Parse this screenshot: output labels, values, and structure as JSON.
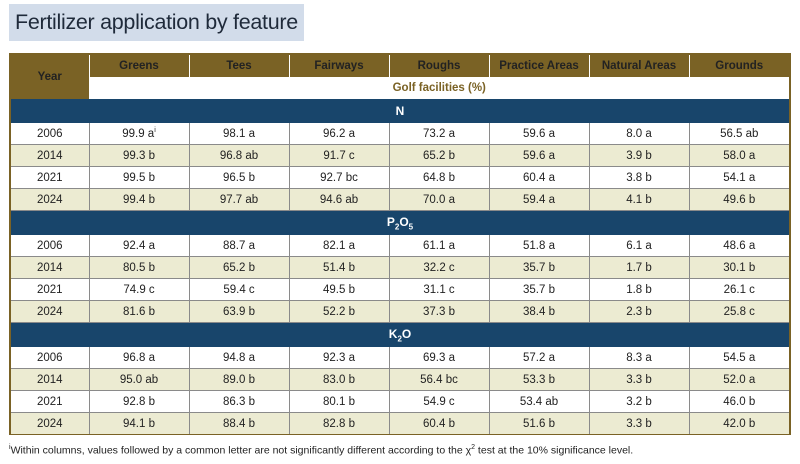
{
  "title": "Fertilizer application by feature",
  "header": {
    "year": "Year",
    "columns": [
      "Greens",
      "Tees",
      "Fairways",
      "Roughs",
      "Practice Areas",
      "Natural Areas",
      "Grounds"
    ],
    "unit": "Golf facilities (%)"
  },
  "sections": [
    {
      "label": "N",
      "sub": "",
      "label_tail": "",
      "sub2": "",
      "rows": [
        {
          "year": "2006",
          "cells": [
            "99.9 a",
            "98.1 a",
            "96.2 a",
            "73.2 a",
            "59.6 a",
            "8.0 a",
            "56.5 ab"
          ]
        },
        {
          "year": "2014",
          "cells": [
            "99.3 b",
            "96.8 ab",
            "91.7 c",
            "65.2 b",
            "59.6 a",
            "3.9 b",
            "58.0 a"
          ]
        },
        {
          "year": "2021",
          "cells": [
            "99.5 b",
            "96.5 b",
            "92.7 bc",
            "64.8 b",
            "60.4 a",
            "3.8 b",
            "54.1 a"
          ]
        },
        {
          "year": "2024",
          "cells": [
            "99.4 b",
            "97.7 ab",
            "94.6 ab",
            "70.0 a",
            "59.4 a",
            "4.1 b",
            "49.6 b"
          ]
        }
      ]
    },
    {
      "label": "P",
      "sub": "2",
      "label_tail": "O",
      "sub2": "5",
      "rows": [
        {
          "year": "2006",
          "cells": [
            "92.4 a",
            "88.7 a",
            "82.1 a",
            "61.1 a",
            "51.8 a",
            "6.1 a",
            "48.6 a"
          ]
        },
        {
          "year": "2014",
          "cells": [
            "80.5 b",
            "65.2 b",
            "51.4 b",
            "32.2 c",
            "35.7 b",
            "1.7 b",
            "30.1 b"
          ]
        },
        {
          "year": "2021",
          "cells": [
            "74.9 c",
            "59.4 c",
            "49.5 b",
            "31.1 c",
            "35.7 b",
            "1.8 b",
            "26.1 c"
          ]
        },
        {
          "year": "2024",
          "cells": [
            "81.6 b",
            "63.9 b",
            "52.2 b",
            "37.3 b",
            "38.4 b",
            "2.3 b",
            "25.8 c"
          ]
        }
      ]
    },
    {
      "label": "K",
      "sub": "2",
      "label_tail": "O",
      "sub2": "",
      "rows": [
        {
          "year": "2006",
          "cells": [
            "96.8 a",
            "94.8 a",
            "92.3 a",
            "69.3 a",
            "57.2 a",
            "8.3 a",
            "54.5 a"
          ]
        },
        {
          "year": "2014",
          "cells": [
            "95.0 ab",
            "89.0 b",
            "83.0 b",
            "56.4 bc",
            "53.3 b",
            "3.3 b",
            "52.0 a"
          ]
        },
        {
          "year": "2021",
          "cells": [
            "92.8 b",
            "86.3 b",
            "80.1 b",
            "54.9 c",
            "53.4 ab",
            "3.2 b",
            "46.0 b"
          ]
        },
        {
          "year": "2024",
          "cells": [
            "94.1 b",
            "88.4 b",
            "82.8 b",
            "60.4 b",
            "51.6 b",
            "3.3 b",
            "42.0 b"
          ]
        }
      ]
    }
  ],
  "first_cell_marker": "i",
  "footnote": {
    "marker": "i",
    "text_before": "Within columns, values followed by a common letter are not significantly different according to the χ",
    "sup": "2",
    "text_after": " test at the 10% significance level."
  }
}
